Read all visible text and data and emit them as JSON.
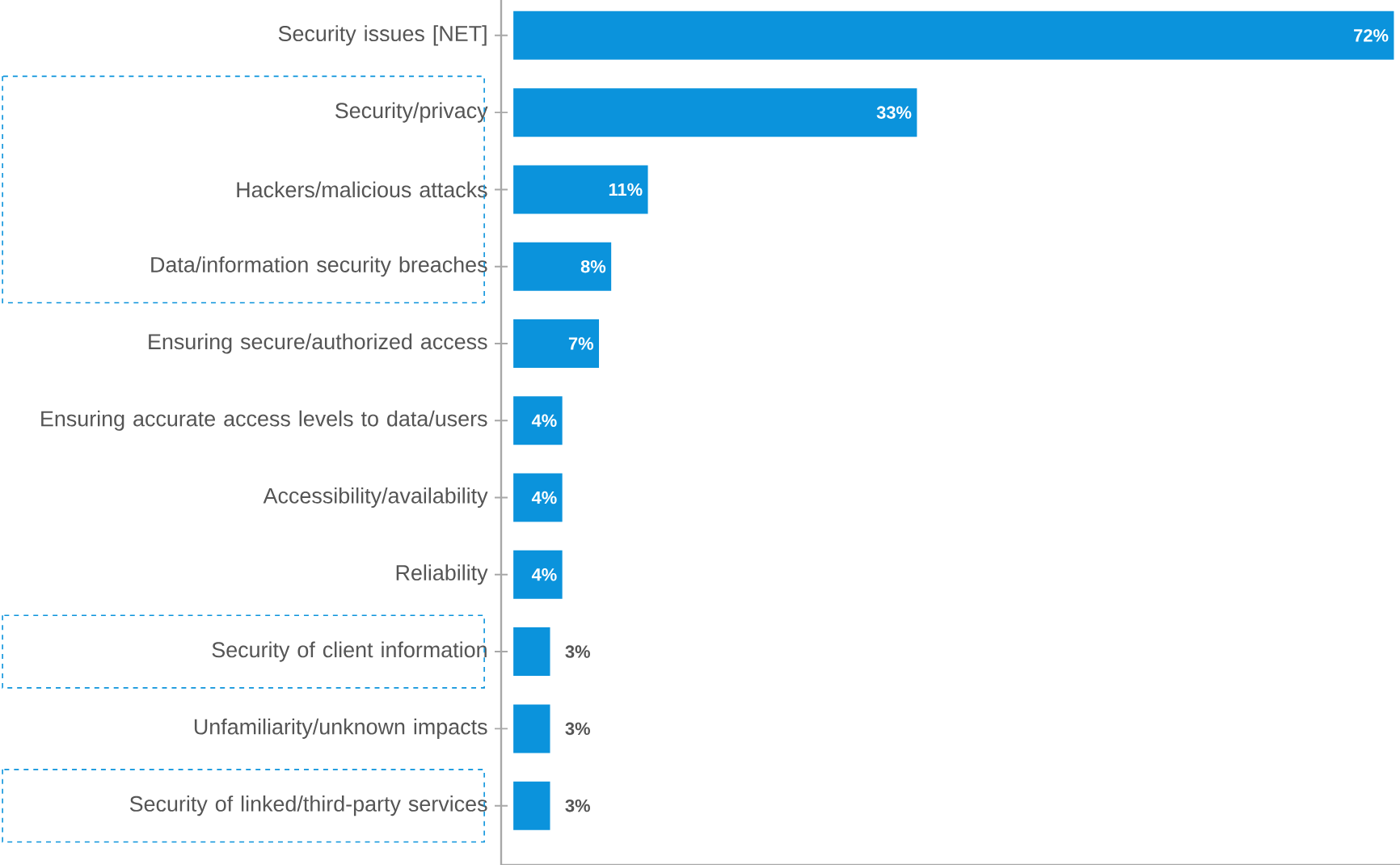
{
  "chart_data": {
    "type": "bar",
    "orientation": "horizontal",
    "categories": [
      "Security issues [NET]",
      "Security/privacy",
      "Hackers/malicious attacks",
      "Data/information security breaches",
      "Ensuring secure/authorized access",
      "Ensuring accurate access levels to data/users",
      "Accessibility/availability",
      "Reliability",
      "Security of client information",
      "Unfamiliarity/unknown impacts",
      "Security of linked/third-party services"
    ],
    "values": [
      72,
      33,
      11,
      8,
      7,
      4,
      4,
      4,
      3,
      3,
      3
    ],
    "value_labels": [
      "72%",
      "33%",
      "11%",
      "8%",
      "7%",
      "4%",
      "4%",
      "4%",
      "3%",
      "3%",
      "3%"
    ],
    "color": "#0b93dc",
    "xlim": [
      -1,
      72.5
    ],
    "tick_labels": "y"
  }
}
